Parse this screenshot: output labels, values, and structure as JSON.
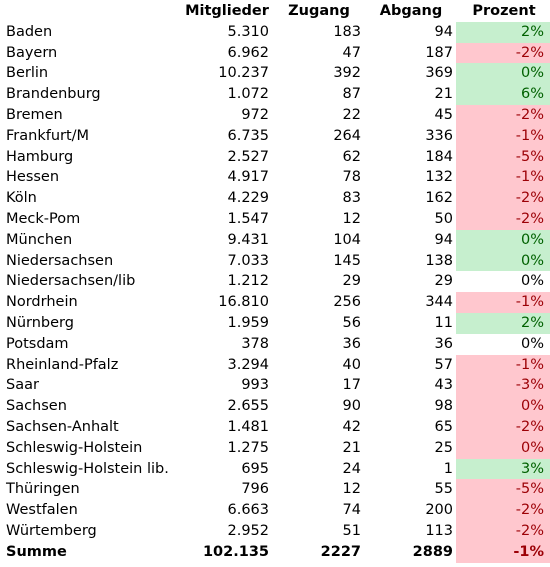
{
  "table": {
    "headers": {
      "name": "",
      "mitglieder": "Mitglieder",
      "zugang": "Zugang",
      "abgang": "Abgang",
      "prozent": "Prozent"
    },
    "rows": [
      {
        "name": "Baden",
        "mitglieder": "5.310",
        "zugang": "183",
        "abgang": "94",
        "prozent": "2%",
        "status": "pos"
      },
      {
        "name": "Bayern",
        "mitglieder": "6.962",
        "zugang": "47",
        "abgang": "187",
        "prozent": "-2%",
        "status": "neg"
      },
      {
        "name": "Berlin",
        "mitglieder": "10.237",
        "zugang": "392",
        "abgang": "369",
        "prozent": "0%",
        "status": "pos"
      },
      {
        "name": "Brandenburg",
        "mitglieder": "1.072",
        "zugang": "87",
        "abgang": "21",
        "prozent": "6%",
        "status": "pos"
      },
      {
        "name": "Bremen",
        "mitglieder": "972",
        "zugang": "22",
        "abgang": "45",
        "prozent": "-2%",
        "status": "neg"
      },
      {
        "name": "Frankfurt/M",
        "mitglieder": "6.735",
        "zugang": "264",
        "abgang": "336",
        "prozent": "-1%",
        "status": "neg"
      },
      {
        "name": "Hamburg",
        "mitglieder": "2.527",
        "zugang": "62",
        "abgang": "184",
        "prozent": "-5%",
        "status": "neg"
      },
      {
        "name": "Hessen",
        "mitglieder": "4.917",
        "zugang": "78",
        "abgang": "132",
        "prozent": "-1%",
        "status": "neg"
      },
      {
        "name": "Köln",
        "mitglieder": "4.229",
        "zugang": "83",
        "abgang": "162",
        "prozent": "-2%",
        "status": "neg"
      },
      {
        "name": "Meck-Pom",
        "mitglieder": "1.547",
        "zugang": "12",
        "abgang": "50",
        "prozent": "-2%",
        "status": "neg"
      },
      {
        "name": "München",
        "mitglieder": "9.431",
        "zugang": "104",
        "abgang": "94",
        "prozent": "0%",
        "status": "pos"
      },
      {
        "name": "Niedersachsen",
        "mitglieder": "7.033",
        "zugang": "145",
        "abgang": "138",
        "prozent": "0%",
        "status": "pos"
      },
      {
        "name": "Niedersachsen/lib",
        "mitglieder": "1.212",
        "zugang": "29",
        "abgang": "29",
        "prozent": "0%",
        "status": "zero"
      },
      {
        "name": "Nordrhein",
        "mitglieder": "16.810",
        "zugang": "256",
        "abgang": "344",
        "prozent": "-1%",
        "status": "neg"
      },
      {
        "name": "Nürnberg",
        "mitglieder": "1.959",
        "zugang": "56",
        "abgang": "11",
        "prozent": "2%",
        "status": "pos"
      },
      {
        "name": "Potsdam",
        "mitglieder": "378",
        "zugang": "36",
        "abgang": "36",
        "prozent": "0%",
        "status": "zero"
      },
      {
        "name": "Rheinland-Pfalz",
        "mitglieder": "3.294",
        "zugang": "40",
        "abgang": "57",
        "prozent": "-1%",
        "status": "neg"
      },
      {
        "name": "Saar",
        "mitglieder": "993",
        "zugang": "17",
        "abgang": "43",
        "prozent": "-3%",
        "status": "neg"
      },
      {
        "name": "Sachsen",
        "mitglieder": "2.655",
        "zugang": "90",
        "abgang": "98",
        "prozent": "0%",
        "status": "neg"
      },
      {
        "name": "Sachsen-Anhalt",
        "mitglieder": "1.481",
        "zugang": "42",
        "abgang": "65",
        "prozent": "-2%",
        "status": "neg"
      },
      {
        "name": "Schleswig-Holstein",
        "mitglieder": "1.275",
        "zugang": "21",
        "abgang": "25",
        "prozent": "0%",
        "status": "neg"
      },
      {
        "name": "Schleswig-Holstein lib.",
        "mitglieder": "695",
        "zugang": "24",
        "abgang": "1",
        "prozent": "3%",
        "status": "pos"
      },
      {
        "name": "Thüringen",
        "mitglieder": "796",
        "zugang": "12",
        "abgang": "55",
        "prozent": "-5%",
        "status": "neg"
      },
      {
        "name": "Westfalen",
        "mitglieder": "6.663",
        "zugang": "74",
        "abgang": "200",
        "prozent": "-2%",
        "status": "neg"
      },
      {
        "name": "Würtemberg",
        "mitglieder": "2.952",
        "zugang": "51",
        "abgang": "113",
        "prozent": "-2%",
        "status": "neg"
      }
    ],
    "total": {
      "name": "Summe",
      "mitglieder": "102.135",
      "zugang": "2227",
      "abgang": "2889",
      "prozent": "-1%",
      "status": "neg"
    },
    "colors": {
      "positive_fill": "#c6efce",
      "positive_text": "#006100",
      "negative_fill": "#ffc7ce",
      "negative_text": "#9c0006"
    }
  }
}
